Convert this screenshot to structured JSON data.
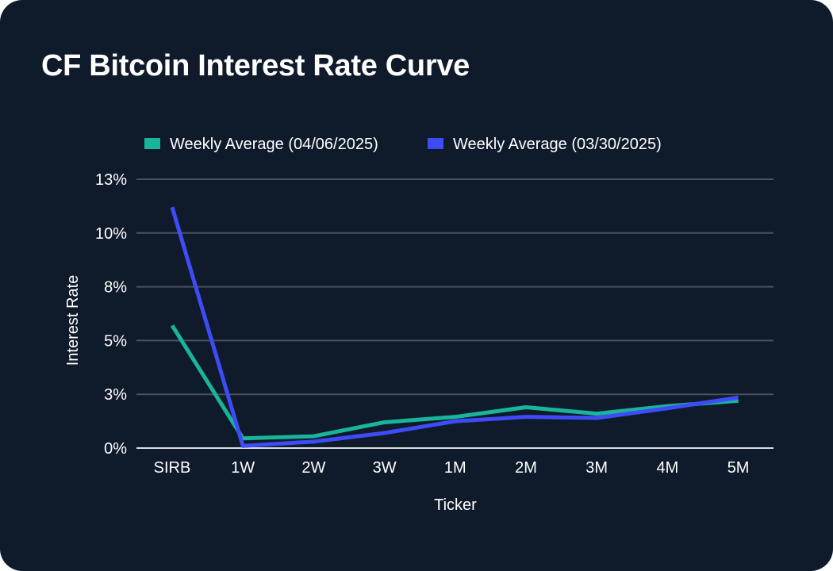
{
  "chart_data": {
    "type": "line",
    "title": "CF Bitcoin Interest Rate Curve",
    "xlabel": "Ticker",
    "ylabel": "Interest Rate",
    "categories": [
      "SIRB",
      "1W",
      "2W",
      "3W",
      "1M",
      "2M",
      "3M",
      "4M",
      "5M"
    ],
    "y_ticks": [
      0,
      2.5,
      5,
      7.5,
      10,
      12.5
    ],
    "y_tick_labels": [
      "0%",
      "3%",
      "5%",
      "8%",
      "10%",
      "13%"
    ],
    "ylim": [
      0,
      12.5
    ],
    "grid": true,
    "legend_position": "top",
    "series": [
      {
        "name": "Weekly Average (04/06/2025)",
        "color": "#19b59b",
        "values": [
          5.7,
          0.45,
          0.55,
          1.2,
          1.45,
          1.9,
          1.6,
          1.95,
          2.2
        ]
      },
      {
        "name": "Weekly Average (03/30/2025)",
        "color": "#3d4cf5",
        "values": [
          11.2,
          0.1,
          0.3,
          0.7,
          1.25,
          1.45,
          1.4,
          1.85,
          2.35
        ]
      }
    ]
  }
}
